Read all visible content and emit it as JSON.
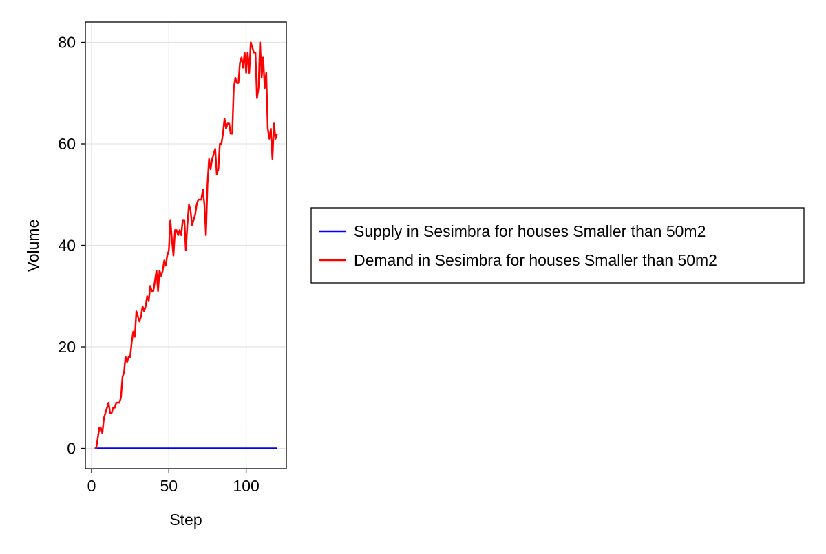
{
  "chart_data": {
    "type": "line",
    "title": "",
    "xlabel": "Step",
    "ylabel": "Volume",
    "xlim": [
      -4,
      126
    ],
    "ylim": [
      -4,
      84
    ],
    "xticks": [
      0,
      50,
      100
    ],
    "yticks": [
      0,
      20,
      40,
      60,
      80
    ],
    "grid": true,
    "legend_position": "right",
    "series": [
      {
        "name": "Supply in Sesimbra for houses Smaller than 50m2",
        "color": "#0000ff",
        "x": [
          2,
          120
        ],
        "y": [
          0,
          0
        ]
      },
      {
        "name": "Demand in Sesimbra for houses Smaller than 50m2",
        "color": "#ff0000",
        "x": [
          2,
          3,
          4,
          5,
          6,
          7,
          8,
          9,
          10,
          11,
          12,
          13,
          14,
          15,
          16,
          17,
          18,
          19,
          20,
          21,
          22,
          23,
          24,
          25,
          26,
          27,
          28,
          29,
          30,
          31,
          32,
          33,
          34,
          35,
          36,
          37,
          38,
          39,
          40,
          41,
          42,
          43,
          44,
          45,
          46,
          47,
          48,
          49,
          50,
          51,
          52,
          53,
          54,
          55,
          56,
          57,
          58,
          59,
          60,
          61,
          62,
          63,
          64,
          65,
          66,
          67,
          68,
          69,
          70,
          71,
          72,
          73,
          74,
          75,
          76,
          77,
          78,
          79,
          80,
          81,
          82,
          83,
          84,
          85,
          86,
          87,
          88,
          89,
          90,
          91,
          92,
          93,
          94,
          95,
          96,
          97,
          98,
          99,
          100,
          101,
          102,
          103,
          104,
          105,
          106,
          107,
          108,
          109,
          110,
          111,
          112,
          113,
          114,
          115,
          116,
          117,
          118,
          119,
          120
        ],
        "y": [
          0,
          0,
          2,
          4,
          4,
          3,
          6,
          7,
          8,
          9,
          7,
          7,
          8,
          8,
          9,
          9,
          9,
          10,
          14,
          15,
          18,
          17,
          18,
          18,
          21,
          23,
          22,
          27,
          26,
          25,
          26,
          28,
          27,
          28,
          30,
          29,
          32,
          31,
          31,
          33,
          35,
          31,
          35,
          34,
          35,
          37,
          36,
          38,
          39,
          45,
          41,
          38,
          43,
          43,
          42,
          43,
          42,
          45,
          45,
          39,
          44,
          48,
          47,
          44,
          45,
          46,
          48,
          49,
          49,
          49,
          51,
          48,
          42,
          52,
          57,
          55,
          57,
          58,
          59,
          54,
          55,
          60,
          60,
          62,
          65,
          63,
          64,
          64,
          62,
          62,
          71,
          73,
          72,
          72,
          76,
          77,
          75,
          78,
          74,
          78,
          74,
          80,
          79,
          78,
          78,
          69,
          71,
          80,
          73,
          77,
          71,
          74,
          63,
          61,
          63,
          57,
          64,
          61,
          62
        ]
      }
    ]
  }
}
